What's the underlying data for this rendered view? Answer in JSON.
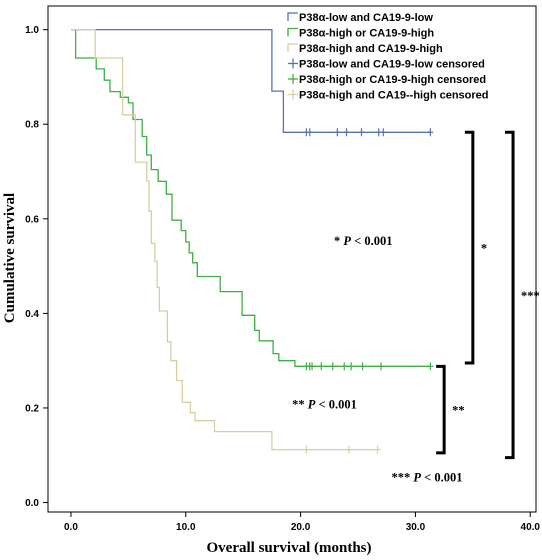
{
  "chart_data": {
    "type": "line",
    "title": "",
    "xlabel": "Overall survival (months)",
    "ylabel": "Cumulative survival",
    "xlim": [
      -2,
      40.5
    ],
    "ylim": [
      -0.02,
      1.05
    ],
    "xticks": [
      0,
      10,
      20,
      30,
      40
    ],
    "xtick_labels": [
      "0.0",
      "10.0",
      "20.0",
      "30.0",
      "40.0"
    ],
    "yticks": [
      0,
      0.2,
      0.4,
      0.6,
      0.8,
      1.0
    ],
    "ytick_labels": [
      "0.0",
      "0.2",
      "0.4",
      "0.6",
      "0.8",
      "1.0"
    ],
    "grid": false,
    "legend_position": "top-right",
    "legend": [
      {
        "label": "P38α-low and CA19-9-low",
        "color": "#5b6fb5",
        "marker": "line"
      },
      {
        "label": "P38α-high or CA19-9-high",
        "color": "#3cb043",
        "marker": "line"
      },
      {
        "label": "P38α-high and CA19-9-high",
        "color": "#d7cfa0",
        "marker": "line"
      },
      {
        "label": "P38α-low and CA19-9-low censored",
        "color": "#5b6fb5",
        "marker": "plus"
      },
      {
        "label": "P38α-high or CA19-9-high censored",
        "color": "#3cb043",
        "marker": "plus"
      },
      {
        "label": "P38α-high and CA19--high censored",
        "color": "#d7cfa0",
        "marker": "plus"
      }
    ],
    "series": [
      {
        "color": "#5b6fb5",
        "step_x": [
          0,
          17.5,
          17.5,
          18.5,
          18.5,
          31.3
        ],
        "step_y": [
          1.0,
          1.0,
          0.87,
          0.87,
          0.783,
          0.783
        ],
        "censored_x": [
          20.5,
          20.8,
          23.2,
          24.0,
          25.3,
          26.8,
          27.2,
          31.3
        ],
        "censored_y": 0.783
      },
      {
        "color": "#3cb043",
        "step_x": [
          0,
          0.4,
          0.4,
          2.2,
          2.2,
          2.9,
          2.9,
          3.4,
          3.4,
          4.3,
          4.3,
          5.0,
          5.0,
          5.4,
          5.4,
          6.2,
          6.2,
          6.6,
          6.6,
          7.0,
          7.0,
          7.6,
          7.6,
          8.3,
          8.3,
          8.8,
          8.8,
          9.6,
          9.6,
          10.0,
          10.0,
          10.3,
          10.3,
          10.6,
          10.6,
          11.0,
          11.0,
          13.0,
          13.0,
          14.9,
          14.9,
          16.0,
          16.0,
          16.4,
          16.4,
          17.6,
          17.6,
          18.1,
          18.1,
          19.5,
          19.5,
          19.8,
          19.8,
          31.3
        ],
        "step_y": [
          1.0,
          1.0,
          0.94,
          0.94,
          0.917,
          0.917,
          0.893,
          0.893,
          0.869,
          0.869,
          0.857,
          0.857,
          0.845,
          0.845,
          0.81,
          0.81,
          0.774,
          0.774,
          0.735,
          0.735,
          0.704,
          0.704,
          0.679,
          0.679,
          0.652,
          0.652,
          0.597,
          0.597,
          0.575,
          0.575,
          0.551,
          0.551,
          0.528,
          0.528,
          0.507,
          0.507,
          0.478,
          0.478,
          0.446,
          0.446,
          0.396,
          0.396,
          0.364,
          0.364,
          0.342,
          0.342,
          0.315,
          0.315,
          0.3,
          0.3,
          0.288,
          0.288,
          0.288,
          0.288
        ],
        "censored_x": [
          20.5,
          20.8,
          21.0,
          21.8,
          22.8,
          23.8,
          24.4,
          25.4,
          27.0,
          31.3
        ],
        "censored_y": 0.288
      },
      {
        "color": "#d7cfa0",
        "step_x": [
          0,
          2.1,
          2.1,
          4.5,
          4.5,
          5.6,
          5.6,
          6.6,
          6.6,
          6.8,
          6.8,
          7.0,
          7.0,
          7.3,
          7.3,
          7.5,
          7.5,
          7.7,
          7.7,
          8.4,
          8.4,
          8.7,
          8.7,
          9.2,
          9.2,
          9.7,
          9.7,
          10.4,
          10.4,
          10.8,
          10.8,
          12.5,
          12.5,
          17.5,
          17.5,
          26.7
        ],
        "step_y": [
          1.0,
          1.0,
          0.94,
          0.94,
          0.82,
          0.82,
          0.72,
          0.72,
          0.68,
          0.68,
          0.616,
          0.616,
          0.548,
          0.548,
          0.51,
          0.51,
          0.455,
          0.455,
          0.405,
          0.405,
          0.34,
          0.34,
          0.3,
          0.3,
          0.258,
          0.258,
          0.212,
          0.212,
          0.19,
          0.19,
          0.173,
          0.173,
          0.15,
          0.15,
          0.112,
          0.112
        ],
        "censored_x": [
          20.5,
          24.2,
          26.7
        ],
        "censored_y": 0.112
      }
    ],
    "annotations": [
      {
        "kind": "text",
        "italic_p": true,
        "prefix": "* ",
        "suffix": " < 0.001",
        "x": 28.0,
        "y": 0.545
      },
      {
        "kind": "text",
        "italic_p": true,
        "prefix": "** ",
        "suffix": " < 0.001",
        "x": 24.9,
        "y": 0.199
      },
      {
        "kind": "text",
        "italic_p": true,
        "prefix": "*** ",
        "suffix": " < 0.001",
        "x": 34.1,
        "y": 0.045
      },
      {
        "kind": "bracket",
        "label": "*",
        "x": 35.0,
        "y_top": 0.783,
        "y_bottom": 0.295
      },
      {
        "kind": "bracket",
        "label": "**",
        "x": 32.5,
        "y_top": 0.288,
        "y_bottom": 0.105
      },
      {
        "kind": "bracket",
        "label": "***",
        "x": 38.5,
        "y_top": 0.783,
        "y_bottom": 0.095
      }
    ]
  }
}
